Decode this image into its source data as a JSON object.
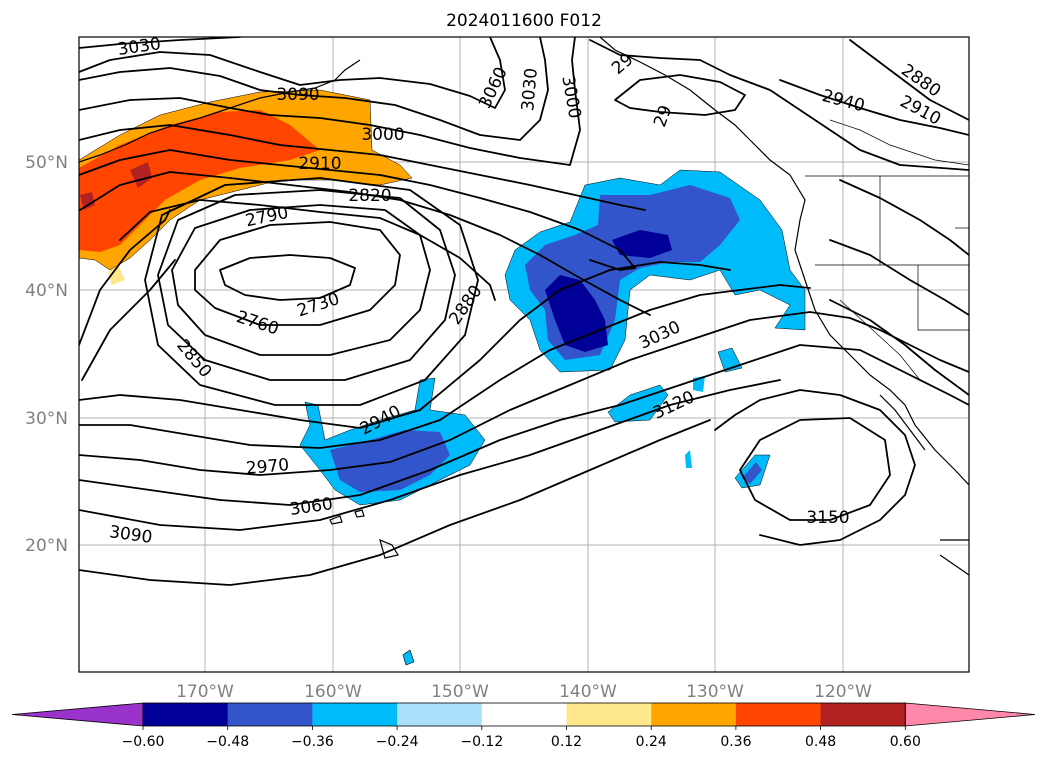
{
  "title": "2024011600 F012",
  "axes": {
    "lon_ticks": [
      "170°W",
      "160°W",
      "150°W",
      "140°W",
      "130°W",
      "120°W"
    ],
    "lat_ticks": [
      "50°N",
      "40°N",
      "30°N",
      "20°N"
    ]
  },
  "contour_labels": [
    "3030",
    "3090",
    "3000",
    "2910",
    "2820",
    "2790",
    "2730",
    "2760",
    "2850",
    "2880",
    "2940",
    "2970",
    "3060",
    "3090",
    "3060",
    "3030",
    "3000",
    "3030",
    "3120",
    "3150",
    "2880",
    "2940",
    "2910",
    "29",
    "29"
  ],
  "colorbar": {
    "ticks": [
      "−0.60",
      "−0.48",
      "−0.36",
      "−0.24",
      "−0.12",
      "0.12",
      "0.24",
      "0.36",
      "0.48",
      "0.60"
    ],
    "colors": [
      "#9933cc",
      "#000099",
      "#3355cc",
      "#00bbf9",
      "#aae0fa",
      "#ffffff",
      "#ffe88c",
      "#ffa500",
      "#ff4500",
      "#b22222",
      "#ff88aa"
    ]
  },
  "colors": {
    "shade_light_blue": "#00bbf9",
    "shade_mid_blue": "#3355cc",
    "shade_dark_blue": "#000099",
    "shade_yellow": "#ffe88c",
    "shade_orange": "#ffa500",
    "shade_red": "#ff4500",
    "shade_darkred": "#b22222"
  }
}
